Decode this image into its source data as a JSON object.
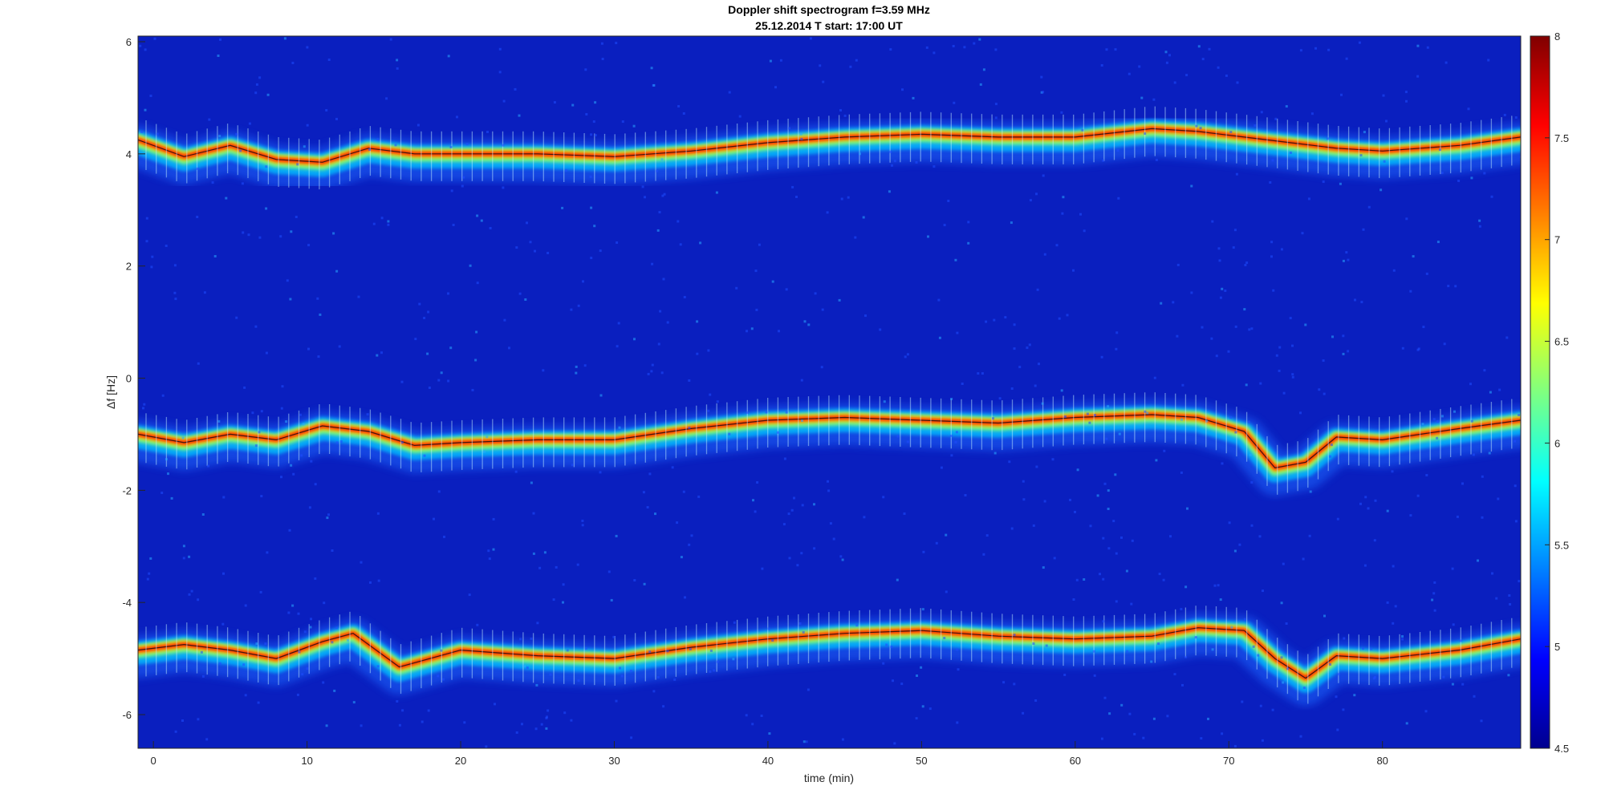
{
  "chart_data": {
    "type": "heatmap",
    "title": "Doppler shift spectrogram f=3.59 MHz",
    "subtitle": "25.12.2014   T start: 17:00 UT",
    "xlabel": "time (min)",
    "ylabel": "Δf [Hz]",
    "xlim": [
      -1,
      89
    ],
    "ylim": [
      -6.6,
      6.1
    ],
    "xticks": [
      0,
      10,
      20,
      30,
      40,
      50,
      60,
      70,
      80
    ],
    "yticks": [
      6,
      4,
      2,
      0,
      -2,
      -4,
      -6
    ],
    "colorbar": {
      "colormap": "jet",
      "range": [
        4.5,
        8
      ],
      "ticks": [
        "8",
        "7.5",
        "7",
        "6.5",
        "6",
        "5.5",
        "5",
        "4.5"
      ]
    },
    "traces": [
      {
        "x": [
          -1,
          2,
          5,
          8,
          11,
          14,
          17,
          20,
          25,
          30,
          35,
          40,
          45,
          50,
          55,
          60,
          65,
          68,
          71,
          74,
          77,
          80,
          85,
          89
        ],
        "y": [
          4.25,
          3.95,
          4.15,
          3.9,
          3.85,
          4.1,
          4.0,
          4.0,
          4.0,
          3.95,
          4.05,
          4.2,
          4.3,
          4.35,
          4.3,
          4.3,
          4.45,
          4.4,
          4.3,
          4.2,
          4.1,
          4.05,
          4.15,
          4.3
        ]
      },
      {
        "x": [
          -1,
          2,
          5,
          8,
          11,
          14,
          17,
          20,
          25,
          30,
          35,
          40,
          45,
          50,
          55,
          60,
          65,
          68,
          71,
          73,
          75,
          77,
          80,
          85,
          89
        ],
        "y": [
          -1.0,
          -1.15,
          -1.0,
          -1.1,
          -0.85,
          -0.95,
          -1.2,
          -1.15,
          -1.1,
          -1.1,
          -0.9,
          -0.75,
          -0.7,
          -0.75,
          -0.8,
          -0.7,
          -0.65,
          -0.7,
          -0.95,
          -1.6,
          -1.5,
          -1.05,
          -1.1,
          -0.9,
          -0.75
        ]
      },
      {
        "x": [
          -1,
          2,
          5,
          8,
          11,
          13,
          16,
          20,
          25,
          30,
          35,
          40,
          45,
          50,
          55,
          60,
          65,
          68,
          71,
          73,
          75,
          77,
          80,
          85,
          89
        ],
        "y": [
          -4.85,
          -4.75,
          -4.85,
          -5.0,
          -4.7,
          -4.55,
          -5.15,
          -4.85,
          -4.95,
          -5.0,
          -4.8,
          -4.65,
          -4.55,
          -4.5,
          -4.6,
          -4.65,
          -4.6,
          -4.45,
          -4.5,
          -5.0,
          -5.35,
          -4.95,
          -5.0,
          -4.85,
          -4.65
        ]
      }
    ]
  }
}
